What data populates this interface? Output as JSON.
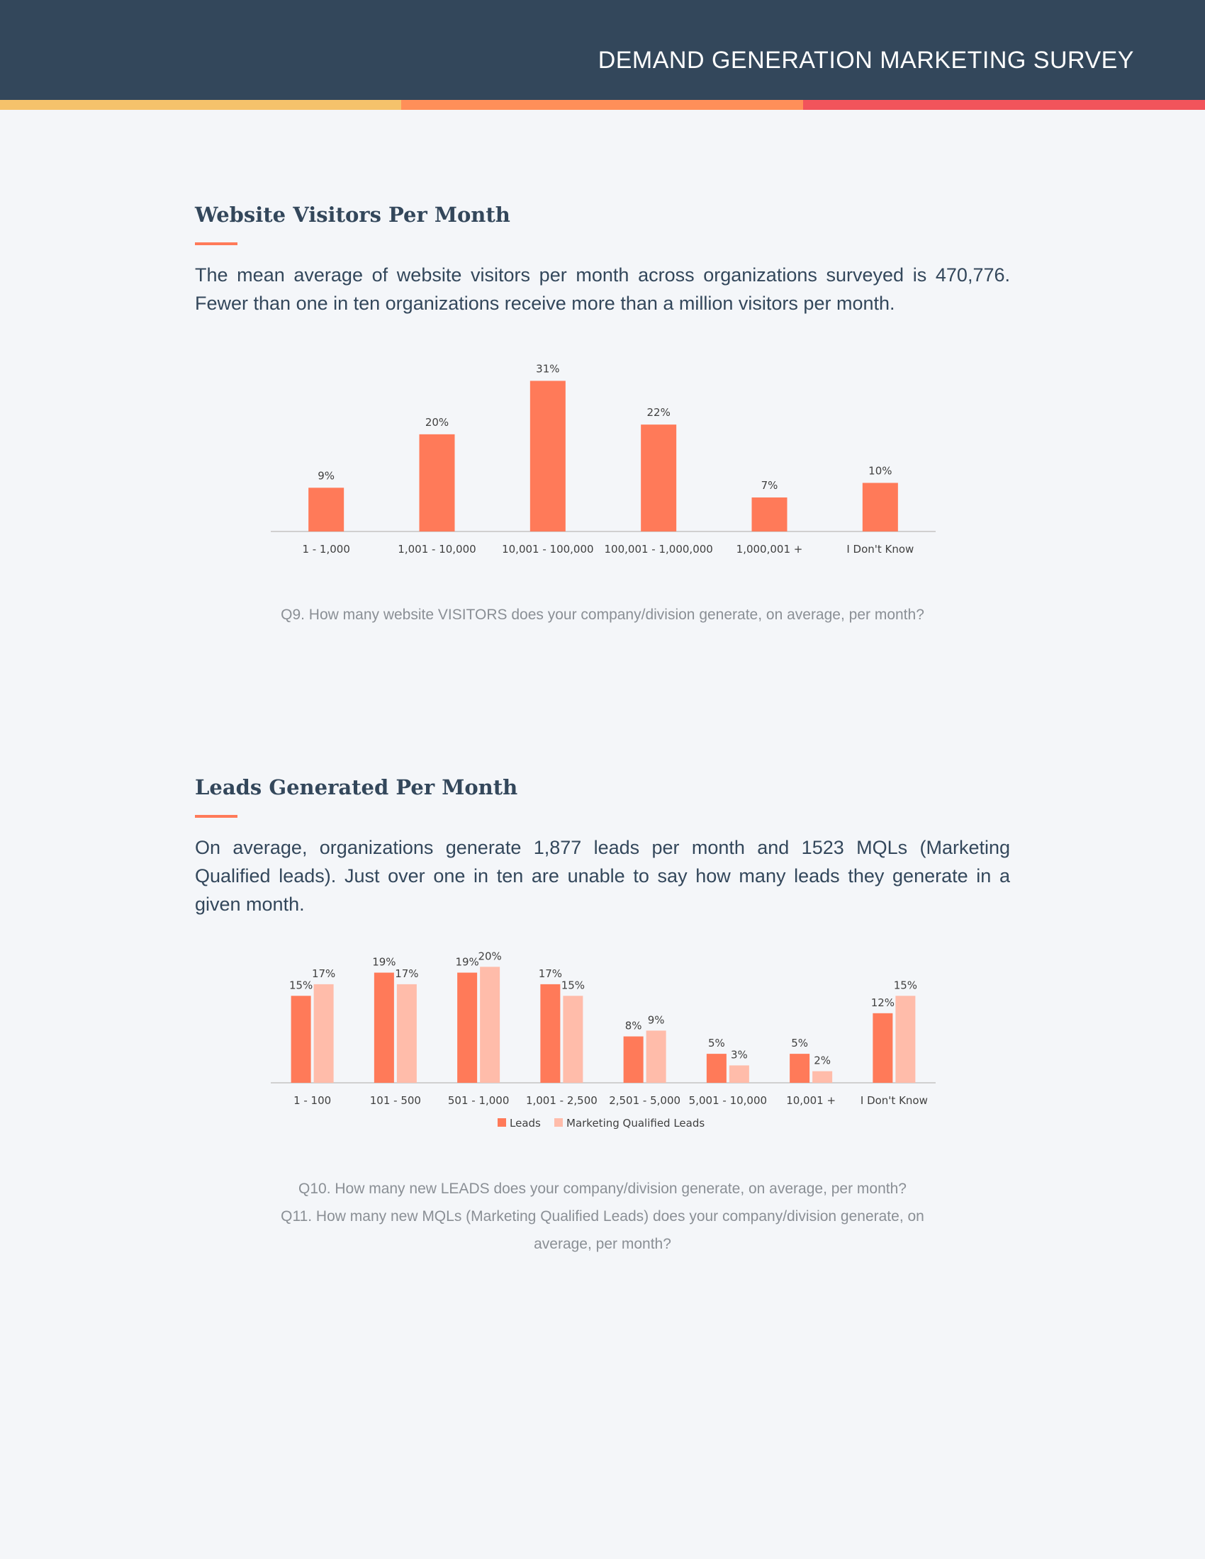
{
  "header": {
    "title": "DEMAND GENERATION MARKETING SURVEY",
    "bg_color": "#33475b",
    "stripe_colors": [
      "#f5c26b",
      "#ff8f59",
      "#f2545b"
    ]
  },
  "section1": {
    "title": "Website Visitors Per Month",
    "text": "The mean average of website visitors per month across organizations surveyed is 470,776. Fewer than one in ten organizations receive more than a million visitors per month.",
    "caption": "Q9. How many website VISITORS does your company/division generate, on average, per month?"
  },
  "section2": {
    "title": "Leads Generated Per Month",
    "text": "On average, organizations generate 1,877 leads per month and 1523 MQLs (Marketing Qualified leads). Just over one in ten are unable to say how many leads they generate in a given month.",
    "caption_lines": [
      "Q10. How many new LEADS does your company/division generate, on average, per month?",
      "Q11. How many new MQLs (Marketing Qualified Leads) does your company/division generate, on average, per month?"
    ]
  },
  "chart_data": [
    {
      "type": "bar",
      "categories": [
        "1 - 1,000",
        "1,001 - 10,000",
        "10,001 - 100,000",
        "100,001 - 1,000,000",
        "1,000,001 +",
        "I Don't Know"
      ],
      "values": [
        9,
        20,
        31,
        22,
        7,
        10
      ],
      "value_labels": [
        "9%",
        "20%",
        "31%",
        "22%",
        "7%",
        "10%"
      ],
      "title": "",
      "xlabel": "",
      "ylabel": "",
      "ylim": [
        0,
        35
      ],
      "grid": false,
      "color": "#ff7a59"
    },
    {
      "type": "bar",
      "categories": [
        "1 - 100",
        "101 - 500",
        "501 - 1,000",
        "1,001 - 2,500",
        "2,501 - 5,000",
        "5,001 - 10,000",
        "10,001 +",
        "I Don't Know"
      ],
      "series": [
        {
          "name": "Leads",
          "values": [
            15,
            19,
            19,
            17,
            8,
            5,
            5,
            12
          ],
          "labels": [
            "15%",
            "19%",
            "19%",
            "17%",
            "8%",
            "5%",
            "5%",
            "12%"
          ],
          "color": "#ff7a59"
        },
        {
          "name": "Marketing Qualified Leads",
          "values": [
            17,
            17,
            20,
            15,
            9,
            3,
            2,
            15
          ],
          "labels": [
            "17%",
            "17%",
            "20%",
            "15%",
            "9%",
            "3%",
            "2%",
            "15%"
          ],
          "color": "#ffbcaa"
        }
      ],
      "title": "",
      "xlabel": "",
      "ylabel": "",
      "ylim": [
        0,
        22
      ],
      "grid": false,
      "legend": "bottom"
    }
  ]
}
